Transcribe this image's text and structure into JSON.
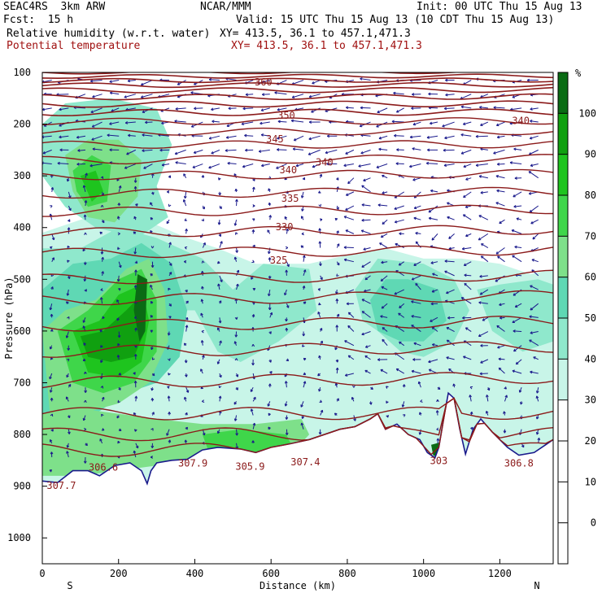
{
  "header": {
    "model": "SEAC4RS  3km ARW",
    "org": "NCAR/MMM",
    "init": "Init: 00 UTC Thu 15 Aug 13",
    "fcst": "Fcst:  15 h",
    "valid": "Valid: 15 UTC Thu 15 Aug 13 (10 CDT Thu 15 Aug 13)",
    "field1": "Relative humidity (w.r.t. water)",
    "field1_xy": "XY= 413.5, 36.1 to 457.1,471.3",
    "field2": "Potential temperature",
    "field2_xy": "XY= 413.5, 36.1 to 457.1,471.3"
  },
  "colors": {
    "isentrope": "#8b1a1a",
    "wind": "#1a1a8c",
    "rh_30": "#c8f5e8",
    "rh_40": "#8fe8cc",
    "rh_50": "#5fd8b4",
    "rh_60": "#7ee08a",
    "rh_70": "#3fd64a",
    "rh_80": "#1ec41e",
    "rh_90": "#10a010",
    "rh_100": "#0a6b14"
  },
  "chart_data": {
    "type": "cross-section",
    "xlabel": "Distance (km)",
    "ylabel": "Pressure (hPa)",
    "xlim": [
      0,
      1340
    ],
    "ylim": [
      1050,
      100
    ],
    "x_ticks": [
      "0",
      "200",
      "400",
      "600",
      "800",
      "1000",
      "1200"
    ],
    "y_ticks": [
      "100",
      "200",
      "300",
      "400",
      "500",
      "600",
      "700",
      "800",
      "900",
      "1000"
    ],
    "x_end_labels": {
      "left": "S",
      "right": "N"
    },
    "colorbar": {
      "unit": "%",
      "levels": [
        "100",
        "90",
        "80",
        "70",
        "60",
        "50",
        "40",
        "30",
        "20",
        "10",
        "0"
      ]
    },
    "isentropes_K": [
      325,
      330,
      335,
      340,
      345,
      350,
      360
    ],
    "isentrope_labels": [
      {
        "text": "360",
        "x": 580,
        "p": 125
      },
      {
        "text": "350",
        "x": 640,
        "p": 190
      },
      {
        "text": "345",
        "x": 610,
        "p": 235
      },
      {
        "text": "340",
        "x": 645,
        "p": 295
      },
      {
        "text": "340",
        "x": 740,
        "p": 280
      },
      {
        "text": "340",
        "x": 1255,
        "p": 200
      },
      {
        "text": "335",
        "x": 650,
        "p": 350
      },
      {
        "text": "330",
        "x": 635,
        "p": 405
      },
      {
        "text": "325",
        "x": 620,
        "p": 470
      }
    ],
    "surface_theta_labels": [
      {
        "text": "307.7",
        "x": 50,
        "p": 905
      },
      {
        "text": "306.6",
        "x": 160,
        "p": 870
      },
      {
        "text": "307.9",
        "x": 395,
        "p": 862
      },
      {
        "text": "305.9",
        "x": 545,
        "p": 868
      },
      {
        "text": "307.4",
        "x": 690,
        "p": 860
      },
      {
        "text": "303",
        "x": 1040,
        "p": 857
      },
      {
        "text": "306.8",
        "x": 1250,
        "p": 862
      }
    ]
  }
}
